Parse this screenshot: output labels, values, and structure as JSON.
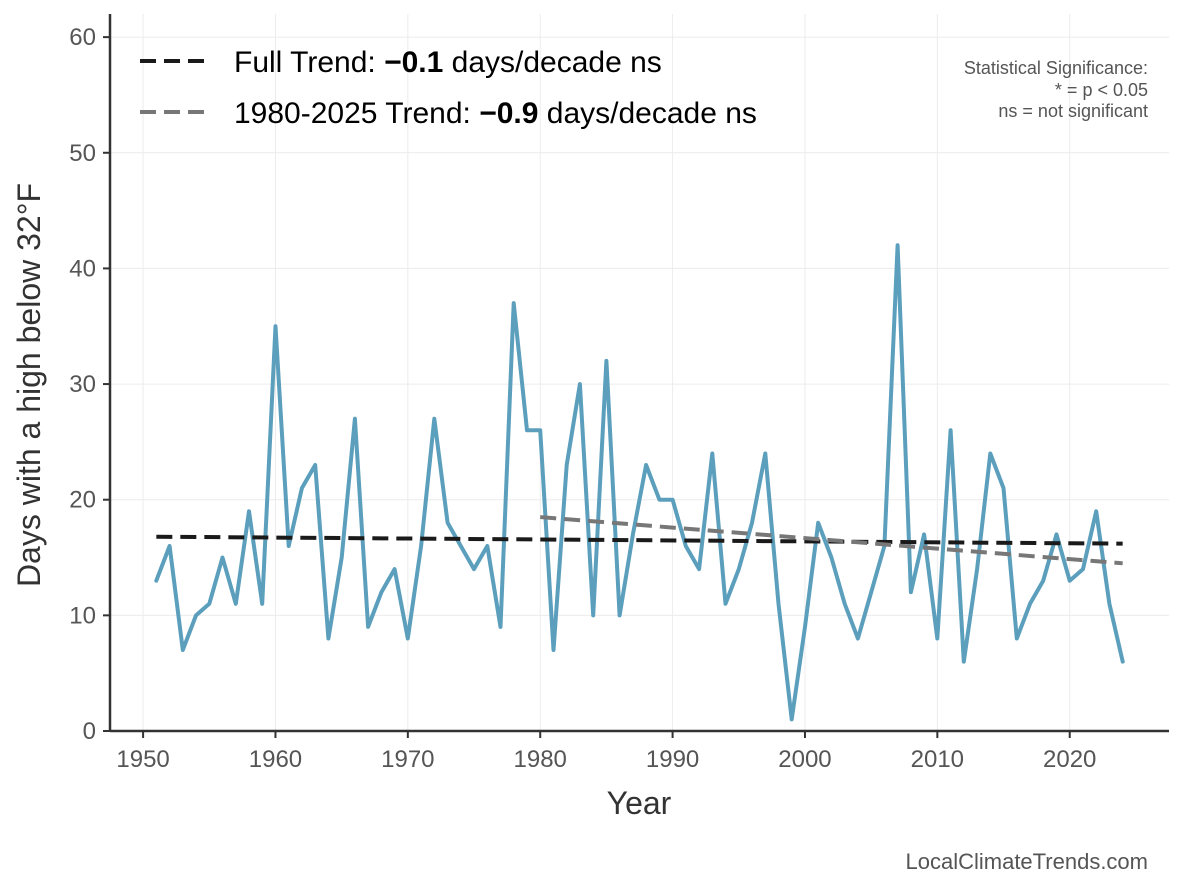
{
  "chart_data": {
    "type": "line",
    "xlabel": "Year",
    "ylabel": "Days with a high below 32°F",
    "xlim": [
      1947.5,
      2027.5
    ],
    "ylim": [
      0,
      62
    ],
    "x_ticks": [
      1950,
      1960,
      1970,
      1980,
      1990,
      2000,
      2010,
      2020
    ],
    "y_ticks": [
      0,
      10,
      20,
      30,
      40,
      50,
      60
    ],
    "grid": true,
    "series": [
      {
        "name": "Days with a high below 32°F",
        "color": "#5b9fbd",
        "x": [
          1951,
          1952,
          1953,
          1954,
          1955,
          1956,
          1957,
          1958,
          1959,
          1960,
          1961,
          1962,
          1963,
          1964,
          1965,
          1966,
          1967,
          1968,
          1969,
          1970,
          1971,
          1972,
          1973,
          1974,
          1975,
          1976,
          1977,
          1978,
          1979,
          1980,
          1981,
          1982,
          1983,
          1984,
          1985,
          1986,
          1987,
          1988,
          1989,
          1990,
          1991,
          1992,
          1993,
          1994,
          1995,
          1996,
          1997,
          1998,
          1999,
          2000,
          2001,
          2002,
          2003,
          2004,
          2005,
          2006,
          2007,
          2008,
          2009,
          2010,
          2011,
          2012,
          2013,
          2014,
          2015,
          2016,
          2017,
          2018,
          2019,
          2020,
          2021,
          2022,
          2023,
          2024
        ],
        "values": [
          13,
          16,
          7,
          10,
          11,
          15,
          11,
          19,
          11,
          35,
          16,
          21,
          23,
          8,
          15,
          27,
          9,
          12,
          14,
          8,
          16,
          27,
          18,
          16,
          14,
          16,
          9,
          37,
          26,
          26,
          7,
          23,
          30,
          10,
          32,
          10,
          17,
          23,
          20,
          20,
          16,
          14,
          24,
          11,
          14,
          18,
          24,
          11,
          1,
          9,
          18,
          15,
          11,
          8,
          12,
          16,
          42,
          12,
          17,
          8,
          26,
          6,
          14,
          24,
          21,
          8,
          11,
          13,
          17,
          13,
          14,
          19,
          11,
          6
        ]
      }
    ],
    "trends": [
      {
        "label_prefix": "Full Trend: ",
        "value_text": "−0.1",
        "label_suffix": " days/decade ns",
        "color": "#1a1a1a",
        "x": [
          1951,
          2024
        ],
        "y": [
          16.8,
          16.2
        ]
      },
      {
        "label_prefix": "1980-2025 Trend: ",
        "value_text": "−0.9",
        "label_suffix": " days/decade ns",
        "color": "#777777",
        "x": [
          1980,
          2024
        ],
        "y": [
          18.5,
          14.5
        ]
      }
    ],
    "significance_note": [
      "Statistical Significance:",
      "* = p < 0.05",
      "ns = not significant"
    ],
    "credit": "LocalClimateTrends.com"
  }
}
